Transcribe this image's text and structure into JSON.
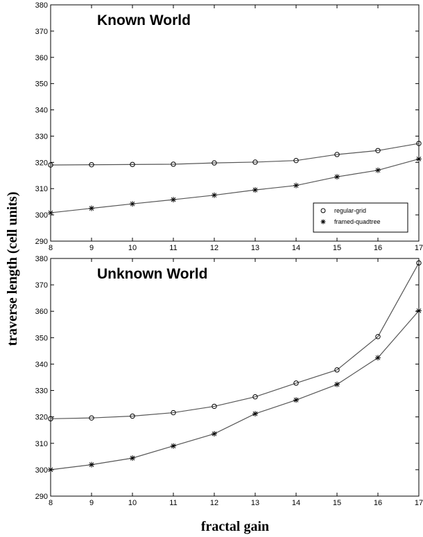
{
  "chart_data": [
    {
      "type": "line",
      "title": "Known World",
      "x": [
        8,
        9,
        10,
        11,
        12,
        13,
        14,
        15,
        16,
        17
      ],
      "xlim": [
        8,
        17
      ],
      "ylim": [
        290,
        380
      ],
      "yticks": [
        290,
        300,
        310,
        320,
        330,
        340,
        350,
        360,
        370,
        380
      ],
      "xticks": [
        8,
        9,
        10,
        11,
        12,
        13,
        14,
        15,
        16,
        17
      ],
      "legend_position": "bottom-right",
      "series": [
        {
          "name": "regular-grid",
          "marker": "o",
          "values": [
            319.0,
            319.1,
            319.2,
            319.3,
            319.8,
            320.1,
            320.7,
            323.0,
            324.5,
            327.2
          ]
        },
        {
          "name": "framed-quadtree",
          "marker": "*",
          "values": [
            300.8,
            302.5,
            304.2,
            305.8,
            307.5,
            309.5,
            311.2,
            314.5,
            317.0,
            321.3
          ]
        }
      ]
    },
    {
      "type": "line",
      "title": "Unknown World",
      "x": [
        8,
        9,
        10,
        11,
        12,
        13,
        14,
        15,
        16,
        17
      ],
      "xlim": [
        8,
        17
      ],
      "ylim": [
        290,
        380
      ],
      "yticks": [
        290,
        300,
        310,
        320,
        330,
        340,
        350,
        360,
        370,
        380
      ],
      "xticks": [
        8,
        9,
        10,
        11,
        12,
        13,
        14,
        15,
        16,
        17
      ],
      "series": [
        {
          "name": "regular-grid",
          "marker": "o",
          "values": [
            319.3,
            319.6,
            320.3,
            321.6,
            324.0,
            327.6,
            332.8,
            337.8,
            350.4,
            378.3
          ]
        },
        {
          "name": "framed-quadtree",
          "marker": "*",
          "values": [
            300.0,
            301.9,
            304.4,
            309.0,
            313.6,
            321.2,
            326.4,
            332.3,
            342.4,
            360.2
          ]
        }
      ]
    }
  ],
  "ylabel": "traverse length (cell units)",
  "xlabel": "fractal gain",
  "colors": {
    "line": "#555555",
    "frame": "#000000",
    "background": "#ffffff"
  }
}
